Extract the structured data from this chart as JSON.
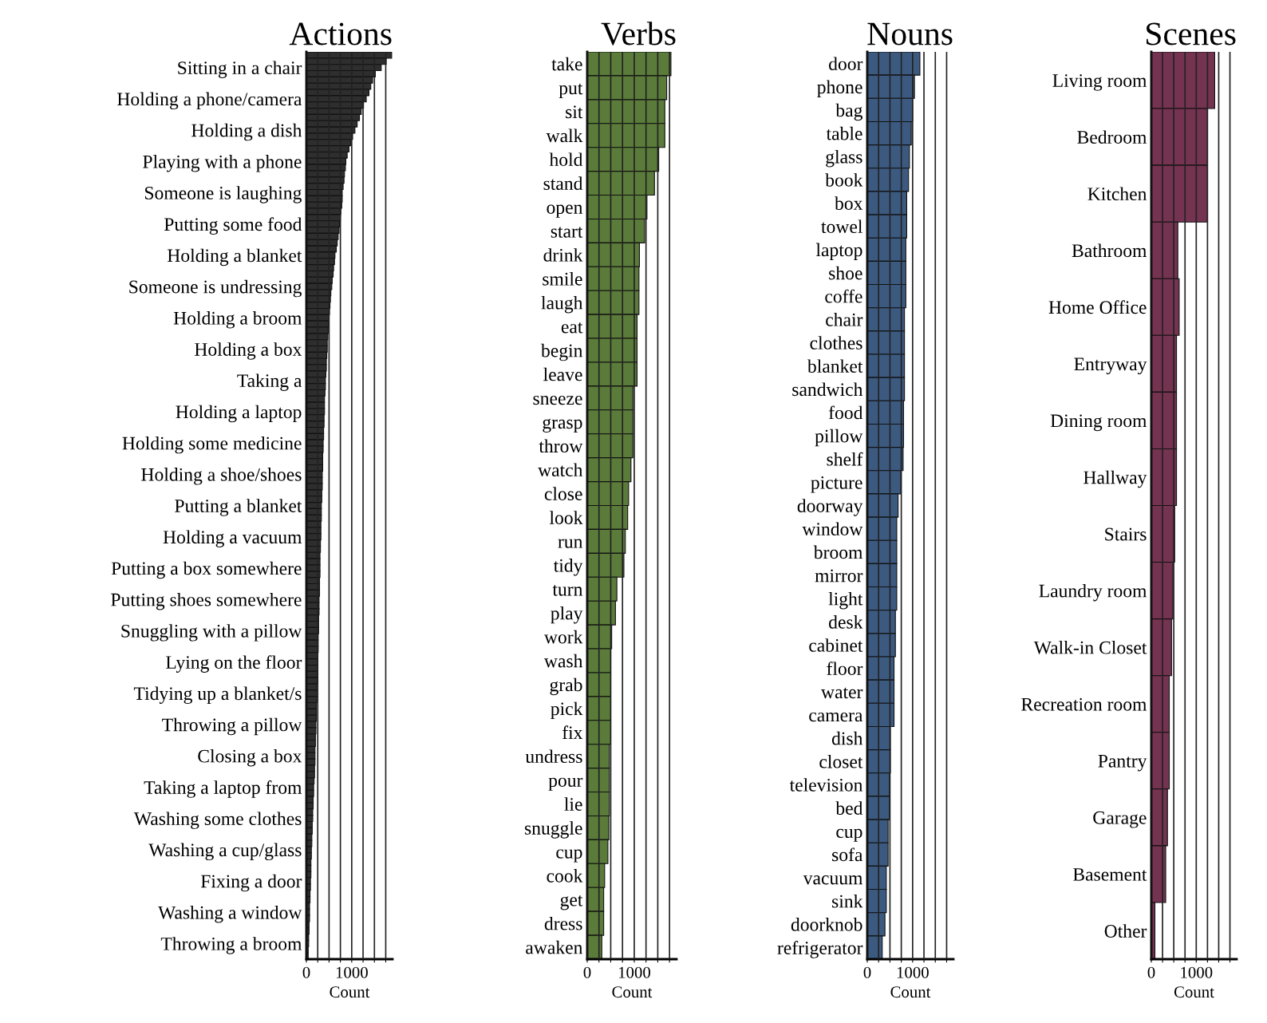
{
  "chart_data": [
    {
      "type": "bar",
      "orientation": "horizontal",
      "title": "Actions",
      "xlabel": "Count",
      "color": "#2e2e2e",
      "grid": "x",
      "xlim": [
        0,
        1900
      ],
      "xticks": [
        0,
        {
          "value": 250,
          "label": null
        },
        {
          "value": 500,
          "label": null
        },
        {
          "value": 750,
          "label": null
        },
        1000,
        {
          "value": 1250,
          "label": null
        },
        {
          "value": 1500,
          "label": null
        },
        {
          "value": 1750,
          "label": null
        }
      ],
      "categories": [
        null,
        null,
        "Sitting in a chair",
        null,
        null,
        null,
        null,
        "Holding a phone/camera",
        null,
        null,
        null,
        null,
        "Holding a dish",
        null,
        null,
        null,
        null,
        "Playing with a phone",
        null,
        null,
        null,
        null,
        "Someone is laughing",
        null,
        null,
        null,
        null,
        "Putting some food",
        null,
        null,
        null,
        null,
        "Holding a blanket",
        null,
        null,
        null,
        null,
        "Someone is undressing",
        null,
        null,
        null,
        null,
        "Holding a broom",
        null,
        null,
        null,
        null,
        "Holding a box",
        null,
        null,
        null,
        null,
        "Taking a",
        null,
        null,
        null,
        null,
        "Holding a laptop",
        null,
        null,
        null,
        null,
        "Holding some medicine",
        null,
        null,
        null,
        null,
        "Holding a shoe/shoes",
        null,
        null,
        null,
        null,
        "Putting a blanket",
        null,
        null,
        null,
        null,
        "Holding a vacuum",
        null,
        null,
        null,
        null,
        "Putting a box somewhere",
        null,
        null,
        null,
        null,
        "Putting shoes somewhere",
        null,
        null,
        null,
        null,
        "Snuggling with a pillow",
        null,
        null,
        null,
        null,
        "Lying on the floor",
        null,
        null,
        null,
        null,
        "Tidying up a blanket/s",
        null,
        null,
        null,
        null,
        "Throwing a pillow",
        null,
        null,
        null,
        null,
        "Closing a box",
        null,
        null,
        null,
        null,
        "Taking a laptop from",
        null,
        null,
        null,
        null,
        "Washing some clothes",
        null,
        null,
        null,
        null,
        "Washing a cup/glass",
        null,
        null,
        null,
        null,
        "Fixing a door",
        null,
        null,
        null,
        null,
        "Washing a window",
        null,
        null,
        null,
        null,
        "Throwing a broom",
        null,
        null
      ],
      "values": [
        1880,
        1760,
        1650,
        1520,
        1460,
        1420,
        1380,
        1320,
        1260,
        1210,
        1170,
        1120,
        1070,
        1020,
        980,
        940,
        900,
        870,
        860,
        840,
        830,
        810,
        790,
        790,
        780,
        760,
        750,
        730,
        720,
        700,
        680,
        660,
        630,
        620,
        600,
        590,
        570,
        560,
        540,
        530,
        520,
        510,
        500,
        490,
        480,
        470,
        460,
        460,
        450,
        440,
        440,
        430,
        420,
        420,
        410,
        400,
        400,
        400,
        390,
        390,
        380,
        380,
        370,
        370,
        360,
        360,
        360,
        350,
        350,
        350,
        340,
        340,
        330,
        330,
        330,
        320,
        320,
        320,
        310,
        310,
        300,
        300,
        300,
        300,
        290,
        290,
        290,
        280,
        280,
        280,
        270,
        270,
        270,
        260,
        260,
        260,
        250,
        250,
        250,
        240,
        240,
        230,
        230,
        230,
        220,
        220,
        220,
        210,
        210,
        200,
        200,
        190,
        190,
        190,
        180,
        180,
        170,
        160,
        160,
        150,
        150,
        140,
        140,
        130,
        130,
        120,
        120,
        110,
        110,
        100,
        100,
        100,
        90,
        90,
        80,
        80,
        70,
        70,
        70,
        60,
        60,
        50,
        50,
        40,
        40
      ]
    },
    {
      "type": "bar",
      "orientation": "horizontal",
      "title": "Verbs",
      "xlabel": "Count",
      "color": "#5a7b3a",
      "grid": "x",
      "xlim": [
        0,
        1900
      ],
      "xticks": [
        0,
        {
          "value": 250,
          "label": null
        },
        {
          "value": 500,
          "label": null
        },
        {
          "value": 750,
          "label": null
        },
        1000,
        {
          "value": 1250,
          "label": null
        },
        {
          "value": 1500,
          "label": null
        },
        {
          "value": 1750,
          "label": null
        }
      ],
      "categories": [
        "take",
        "put",
        "sit",
        "walk",
        "hold",
        "stand",
        "open",
        "start",
        "drink",
        "smile",
        "laugh",
        "eat",
        "begin",
        "leave",
        "sneeze",
        "grasp",
        "throw",
        "watch",
        "close",
        "look",
        "run",
        "tidy",
        "turn",
        "play",
        "work",
        "wash",
        "grab",
        "pick",
        "fix",
        "undress",
        "pour",
        "lie",
        "snuggle",
        "cup",
        "cook",
        "get",
        "dress",
        "awaken"
      ],
      "values": [
        1780,
        1690,
        1650,
        1650,
        1520,
        1430,
        1270,
        1220,
        1110,
        1100,
        1100,
        1060,
        1060,
        1060,
        970,
        970,
        970,
        930,
        880,
        860,
        810,
        780,
        630,
        600,
        520,
        500,
        500,
        500,
        500,
        470,
        470,
        470,
        460,
        440,
        370,
        350,
        350,
        310
      ]
    },
    {
      "type": "bar",
      "orientation": "horizontal",
      "title": "Nouns",
      "xlabel": "Count",
      "color": "#3c5a80",
      "grid": "x",
      "xlim": [
        0,
        1900
      ],
      "xticks": [
        0,
        {
          "value": 250,
          "label": null
        },
        {
          "value": 500,
          "label": null
        },
        {
          "value": 750,
          "label": null
        },
        1000,
        {
          "value": 1250,
          "label": null
        },
        {
          "value": 1500,
          "label": null
        },
        {
          "value": 1750,
          "label": null
        }
      ],
      "categories": [
        "door",
        "phone",
        "bag",
        "table",
        "glass",
        "book",
        "box",
        "towel",
        "laptop",
        "shoe",
        "coffe",
        "chair",
        "clothes",
        "blanket",
        "sandwich",
        "food",
        "pillow",
        "shelf",
        "picture",
        "doorway",
        "window",
        "broom",
        "mirror",
        "light",
        "desk",
        "cabinet",
        "floor",
        "water",
        "camera",
        "dish",
        "closet",
        "television",
        "bed",
        "cup",
        "sofa",
        "vacuum",
        "sink",
        "doorknob",
        "refrigerator"
      ],
      "values": [
        1160,
        1040,
        1000,
        970,
        930,
        910,
        870,
        870,
        850,
        850,
        850,
        820,
        820,
        820,
        820,
        800,
        800,
        790,
        740,
        680,
        650,
        650,
        650,
        650,
        620,
        620,
        590,
        590,
        590,
        510,
        510,
        490,
        490,
        460,
        460,
        420,
        420,
        390,
        330
      ]
    },
    {
      "type": "bar",
      "orientation": "horizontal",
      "title": "Scenes",
      "xlabel": "Count",
      "color": "#753352",
      "grid": "x",
      "xlim": [
        0,
        1900
      ],
      "xticks": [
        0,
        {
          "value": 250,
          "label": null
        },
        {
          "value": 500,
          "label": null
        },
        {
          "value": 750,
          "label": null
        },
        1000,
        {
          "value": 1250,
          "label": null
        },
        {
          "value": 1500,
          "label": null
        },
        {
          "value": 1750,
          "label": null
        }
      ],
      "categories": [
        "Living room",
        "Bedroom",
        "Kitchen",
        "Bathroom",
        "Home Office",
        "Entryway",
        "Dining room",
        "Hallway",
        "Stairs",
        "Laundry room",
        "Walk-in Closet",
        "Recreation room",
        "Pantry",
        "Garage",
        "Basement",
        "Other"
      ],
      "values": [
        1410,
        1250,
        1250,
        590,
        620,
        560,
        560,
        560,
        520,
        480,
        450,
        400,
        400,
        360,
        320,
        80
      ]
    }
  ]
}
